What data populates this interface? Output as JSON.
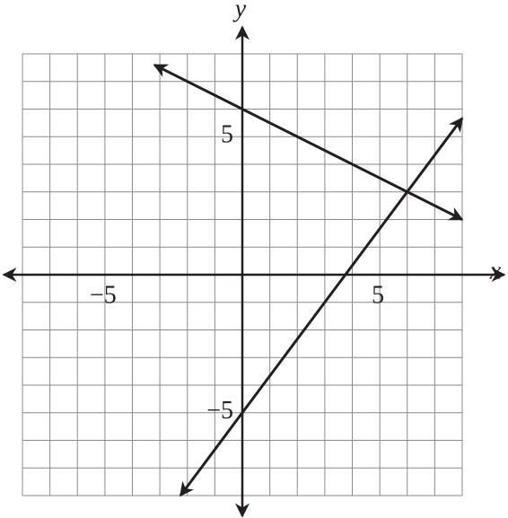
{
  "chart_data": {
    "type": "line",
    "xlabel": "x",
    "ylabel": "y",
    "xlim": [
      -8,
      8
    ],
    "ylim": [
      -8,
      8
    ],
    "xticks": [
      {
        "value": -5,
        "label": "−5"
      },
      5
    ],
    "yticks": [
      {
        "value": -5,
        "label": "−5"
      },
      5
    ],
    "grid": true,
    "xgrid": [
      -8,
      -7,
      -6,
      -5,
      -4,
      -3,
      -2,
      -1,
      0,
      1,
      2,
      3,
      4,
      5,
      6,
      7,
      8
    ],
    "ygrid": [
      -8,
      -7,
      -6,
      -5,
      -4,
      -3,
      -2,
      -1,
      0,
      1,
      2,
      3,
      4,
      5,
      6,
      7,
      8
    ],
    "series": [
      {
        "color": "#231f20",
        "x": [
          -3.2,
          8
        ],
        "values": [
          7.6,
          2
        ]
      },
      {
        "color": "#231f20",
        "x": [
          -2.25,
          8
        ],
        "values": [
          -8,
          5.67
        ]
      }
    ]
  }
}
